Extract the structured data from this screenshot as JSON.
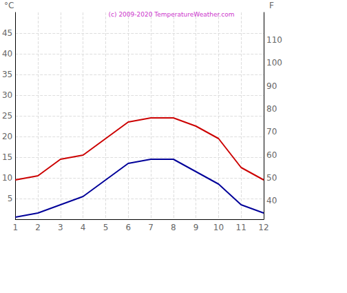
{
  "chart_data": {
    "type": "line",
    "title": "(c) 2009-2020 TemperatureWeather.com",
    "y_label": "°C",
    "y2_label": "F",
    "categories": [
      "1",
      "2",
      "3",
      "4",
      "5",
      "6",
      "7",
      "8",
      "9",
      "10",
      "11",
      "12"
    ],
    "series": [
      {
        "color": "#cc0000",
        "values": [
          9.5,
          10.5,
          14.5,
          15.5,
          19.5,
          23.5,
          24.5,
          24.5,
          22.5,
          19.5,
          12.5,
          9.5
        ]
      },
      {
        "color": "#000099",
        "values": [
          0.5,
          1.5,
          3.5,
          5.5,
          9.5,
          13.5,
          14.5,
          14.5,
          11.5,
          8.5,
          3.5,
          1.5
        ]
      }
    ],
    "ylim": [
      0,
      50
    ],
    "yticks": [
      5,
      10,
      15,
      20,
      25,
      30,
      35,
      40,
      45
    ],
    "y2lim": [
      32,
      122
    ],
    "y2ticks": [
      40,
      50,
      60,
      70,
      80,
      90,
      100,
      110
    ],
    "grid": true
  }
}
